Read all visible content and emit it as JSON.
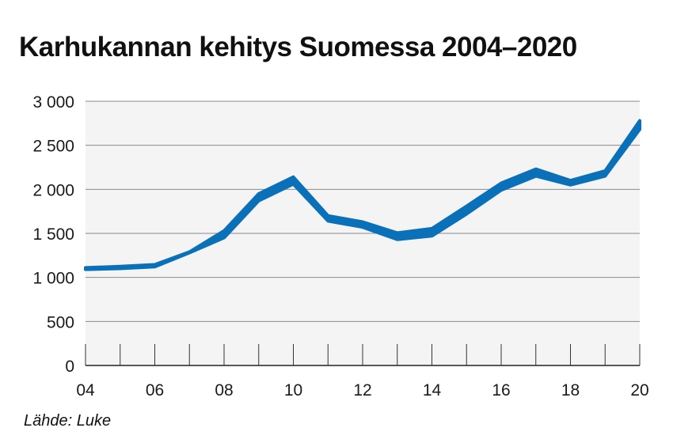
{
  "chart_data": {
    "type": "line",
    "title": "Karhukannan kehitys Suomessa 2004–2020",
    "xlabel": "",
    "ylabel": "",
    "x": [
      2004,
      2005,
      2006,
      2007,
      2008,
      2009,
      2010,
      2011,
      2012,
      2013,
      2014,
      2015,
      2016,
      2017,
      2018,
      2019,
      2020
    ],
    "series": [
      {
        "name": "",
        "low": [
          1090,
          1100,
          1120,
          1280,
          1450,
          1870,
          2060,
          1640,
          1570,
          1430,
          1470,
          1720,
          1990,
          2150,
          2050,
          2150,
          2680
        ]
      },
      {
        "name": "",
        "high": [
          1110,
          1125,
          1145,
          1290,
          1530,
          1950,
          2140,
          1700,
          1630,
          1505,
          1555,
          1810,
          2070,
          2230,
          2100,
          2210,
          2780
        ]
      }
    ],
    "ylim": [
      0,
      3000
    ],
    "xlim": [
      2004,
      2020
    ],
    "yticks": [
      0,
      500,
      1000,
      1500,
      2000,
      2500,
      3000
    ],
    "ytick_labels": [
      "0",
      "500",
      "1 000",
      "1 500",
      "2 000",
      "2 500",
      "3 000"
    ],
    "xticks": [
      2004,
      2006,
      2008,
      2010,
      2012,
      2014,
      2016,
      2018,
      2020
    ],
    "xtick_labels": [
      "04",
      "06",
      "08",
      "10",
      "12",
      "14",
      "16",
      "18",
      "20"
    ],
    "grid": true,
    "colors": {
      "band": "#0a70b8",
      "plot_bg": "#f4f4f4",
      "grid": "#8a8a8a"
    }
  },
  "source": "Lähde: Luke"
}
